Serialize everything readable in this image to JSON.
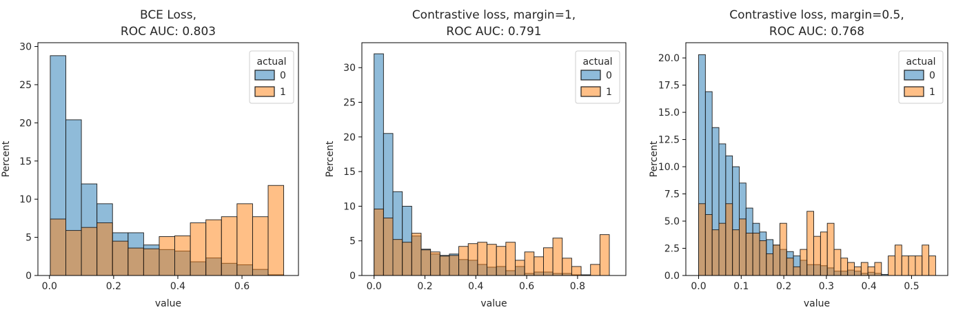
{
  "chart_data": [
    {
      "type": "histogram",
      "title": "BCE Loss,\nROC AUC: 0.803",
      "xlabel": "value",
      "ylabel": "Percent",
      "xlim": [
        -0.036,
        0.776
      ],
      "ylim": [
        0,
        30.5
      ],
      "xticks": [
        0.0,
        0.2,
        0.4,
        0.6
      ],
      "xtick_labels": [
        "0.0",
        "0.2",
        "0.4",
        "0.6"
      ],
      "yticks": [
        0,
        5,
        10,
        15,
        20,
        25,
        30
      ],
      "ytick_labels": [
        "0",
        "5",
        "10",
        "15",
        "20",
        "25",
        "30"
      ],
      "bin_edges": [
        0.0025,
        0.051,
        0.0995,
        0.148,
        0.1965,
        0.245,
        0.2935,
        0.342,
        0.3905,
        0.439,
        0.4875,
        0.536,
        0.5845,
        0.633,
        0.6815,
        0.73
      ],
      "legend": {
        "title": "actual",
        "position": "top-right",
        "entries": [
          "0",
          "1"
        ]
      },
      "series": [
        {
          "name": "0",
          "color": "#1f77b4",
          "values": [
            28.8,
            20.4,
            12.0,
            9.4,
            5.6,
            5.6,
            4.0,
            3.4,
            3.2,
            1.8,
            2.3,
            1.6,
            1.4,
            0.8,
            0.1
          ]
        },
        {
          "name": "1",
          "color": "#ff7f0e",
          "values": [
            7.4,
            5.9,
            6.3,
            6.9,
            4.5,
            3.6,
            3.5,
            5.1,
            5.2,
            6.9,
            7.3,
            7.7,
            9.4,
            7.7,
            11.8
          ]
        }
      ]
    },
    {
      "type": "histogram",
      "title": "Contrastive loss, margin=1,\nROC AUC: 0.791",
      "xlabel": "value",
      "ylabel": "Percent",
      "xlim": [
        -0.048,
        0.99
      ],
      "ylim": [
        0,
        33.6
      ],
      "xticks": [
        0.0,
        0.2,
        0.4,
        0.6,
        0.8
      ],
      "xtick_labels": [
        "0.0",
        "0.2",
        "0.4",
        "0.6",
        "0.8"
      ],
      "yticks": [
        0,
        5,
        10,
        15,
        20,
        25,
        30
      ],
      "ytick_labels": [
        "0",
        "5",
        "10",
        "15",
        "20",
        "25",
        "30"
      ],
      "bin_edges": [
        0.0,
        0.037,
        0.074,
        0.111,
        0.148,
        0.185,
        0.222,
        0.259,
        0.296,
        0.333,
        0.37,
        0.407,
        0.444,
        0.481,
        0.518,
        0.555,
        0.592,
        0.629,
        0.666,
        0.703,
        0.74,
        0.777,
        0.814,
        0.851,
        0.888,
        0.925
      ],
      "legend": {
        "title": "actual",
        "position": "top-right",
        "entries": [
          "0",
          "1"
        ]
      },
      "series": [
        {
          "name": "0",
          "color": "#1f77b4",
          "values": [
            32.0,
            20.5,
            12.1,
            10.0,
            5.7,
            3.8,
            3.1,
            2.9,
            3.1,
            2.3,
            2.2,
            1.6,
            1.2,
            1.3,
            0.7,
            1.3,
            0.3,
            0.5,
            0.5,
            0.3,
            0.3,
            0.1,
            0.1,
            0.0,
            0.0
          ]
        },
        {
          "name": "1",
          "color": "#ff7f0e",
          "values": [
            9.6,
            8.3,
            5.2,
            4.8,
            6.1,
            3.7,
            3.4,
            2.8,
            2.9,
            4.2,
            4.6,
            4.8,
            4.5,
            4.2,
            4.8,
            2.2,
            3.4,
            2.7,
            4.0,
            5.4,
            2.5,
            1.3,
            0.0,
            1.6,
            5.9
          ]
        }
      ]
    },
    {
      "type": "histogram",
      "title": "Contrastive loss, margin=0.5,\nROC AUC: 0.768",
      "xlabel": "value",
      "ylabel": "Percent",
      "xlim": [
        -0.03,
        0.585
      ],
      "ylim": [
        0,
        21.4
      ],
      "xticks": [
        0.0,
        0.1,
        0.2,
        0.3,
        0.4,
        0.5
      ],
      "xtick_labels": [
        "0.0",
        "0.1",
        "0.2",
        "0.3",
        "0.4",
        "0.5"
      ],
      "yticks": [
        0,
        2.5,
        5,
        7.5,
        10,
        12.5,
        15,
        17.5,
        20
      ],
      "ytick_labels": [
        "0.0",
        "2.5",
        "5.0",
        "7.5",
        "10.0",
        "12.5",
        "15.0",
        "17.5",
        "20.0"
      ],
      "bin_edges": [
        0.0,
        0.0159,
        0.0318,
        0.0477,
        0.0636,
        0.0795,
        0.0954,
        0.1113,
        0.1272,
        0.1431,
        0.159,
        0.1749,
        0.1908,
        0.2067,
        0.2226,
        0.2385,
        0.2544,
        0.2703,
        0.2862,
        0.3021,
        0.318,
        0.3339,
        0.3498,
        0.3657,
        0.3816,
        0.3975,
        0.4134,
        0.4293,
        0.4452,
        0.4611,
        0.477,
        0.4929,
        0.5088,
        0.5247,
        0.5406,
        0.5565
      ],
      "legend": {
        "title": "actual",
        "position": "top-right",
        "entries": [
          "0",
          "1"
        ]
      },
      "series": [
        {
          "name": "0",
          "color": "#1f77b4",
          "values": [
            20.3,
            16.9,
            13.6,
            12.1,
            11.0,
            10.0,
            8.5,
            6.2,
            4.8,
            4.0,
            3.3,
            2.8,
            2.4,
            2.2,
            1.8,
            1.4,
            1.0,
            1.0,
            0.9,
            0.7,
            0.4,
            0.4,
            0.5,
            0.4,
            0.2,
            0.3,
            0.2,
            0.1,
            0.0,
            0.0,
            0.0,
            0.0,
            0.0,
            0.0,
            0.0
          ]
        },
        {
          "name": "1",
          "color": "#ff7f0e",
          "values": [
            6.6,
            5.6,
            4.2,
            4.8,
            6.6,
            4.2,
            5.2,
            3.9,
            3.9,
            3.2,
            2.0,
            2.8,
            4.8,
            1.6,
            0.8,
            2.4,
            5.9,
            3.6,
            4.0,
            4.8,
            2.4,
            1.6,
            1.2,
            0.8,
            1.2,
            0.8,
            1.2,
            0.0,
            1.8,
            2.8,
            1.8,
            1.8,
            1.8,
            2.8,
            1.8
          ]
        }
      ]
    }
  ]
}
